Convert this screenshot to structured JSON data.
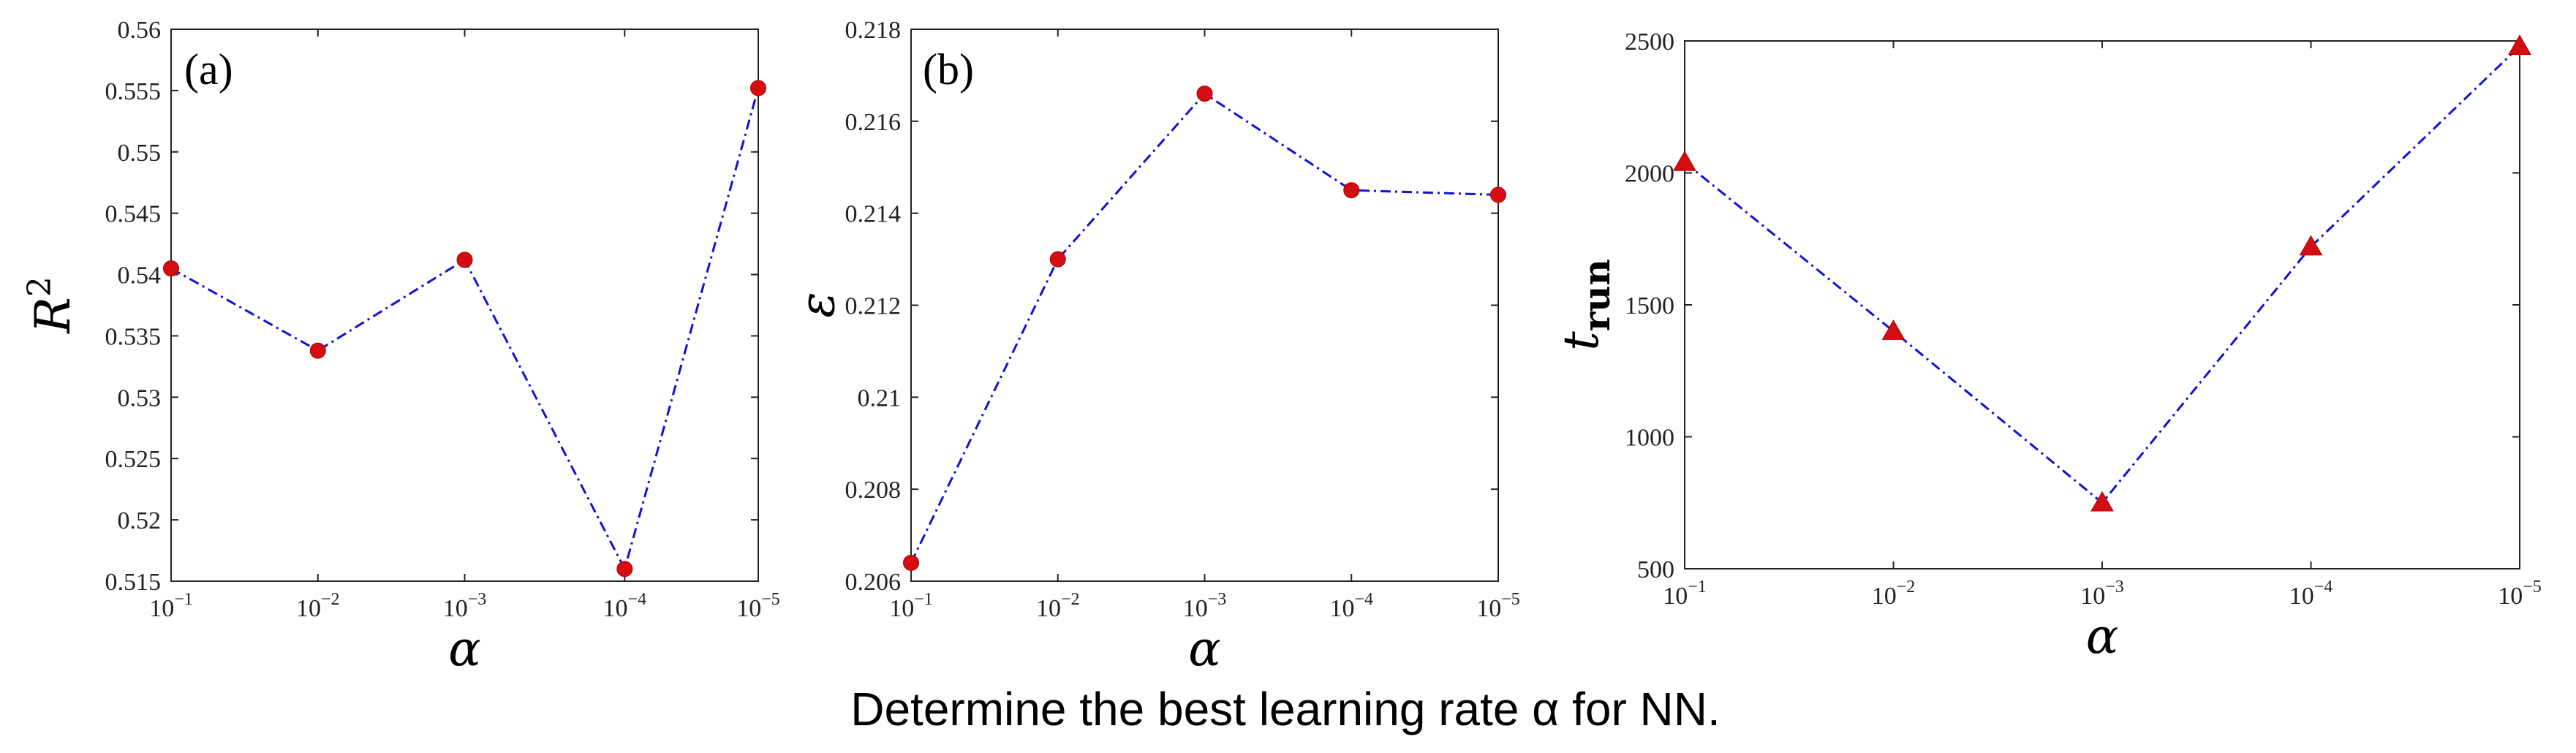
{
  "caption": "Determine the best learning rate α for NN.",
  "colors": {
    "line": "#1010d8",
    "marker": "#d40d12"
  },
  "chart_data": [
    {
      "type": "line",
      "panel_label": "(a)",
      "x_categories": [
        "10^-1",
        "10^-2",
        "10^-3",
        "10^-4",
        "10^-5"
      ],
      "x_exponents": [
        -1,
        -2,
        -3,
        -4,
        -5
      ],
      "x_positions": [
        0,
        1,
        2,
        3.09,
        4
      ],
      "xlabel": "α",
      "ylabel": "R",
      "ylabel_sup": "2",
      "ylim": [
        0.515,
        0.56
      ],
      "yticks": [
        0.515,
        0.52,
        0.525,
        0.53,
        0.535,
        0.54,
        0.545,
        0.55,
        0.555,
        0.56
      ],
      "ytick_labels": [
        "0.515",
        "0.52",
        "0.525",
        "0.53",
        "0.535",
        "0.54",
        "0.545",
        "0.55",
        "0.555",
        "0.56"
      ],
      "marker": "circle",
      "values": [
        0.5405,
        0.5338,
        0.5412,
        0.516,
        0.5552
      ]
    },
    {
      "type": "line",
      "panel_label": "(b)",
      "x_categories": [
        "10^-1",
        "10^-2",
        "10^-3",
        "10^-4",
        "10^-5"
      ],
      "x_exponents": [
        -1,
        -2,
        -3,
        -4,
        -5
      ],
      "x_positions": [
        0,
        1,
        2,
        3,
        4
      ],
      "xlabel": "α",
      "ylabel": "ε",
      "ylim": [
        0.206,
        0.218
      ],
      "yticks": [
        0.206,
        0.208,
        0.21,
        0.212,
        0.214,
        0.216,
        0.218
      ],
      "ytick_labels": [
        "0.206",
        "0.208",
        "0.21",
        "0.212",
        "0.214",
        "0.216",
        "0.218"
      ],
      "marker": "circle",
      "values": [
        0.2064,
        0.213,
        0.2166,
        0.2145,
        0.2144
      ]
    },
    {
      "type": "line",
      "panel_label": "",
      "x_categories": [
        "10^-1",
        "10^-2",
        "10^-3",
        "10^-4",
        "10^-5"
      ],
      "x_exponents": [
        -1,
        -2,
        -3,
        -4,
        -5
      ],
      "x_positions": [
        0,
        1,
        2,
        3,
        4
      ],
      "xlabel": "α",
      "ylabel": "t",
      "ylabel_sub": "run",
      "ylim": [
        500,
        2500
      ],
      "yticks": [
        500,
        1000,
        1500,
        2000,
        2500
      ],
      "ytick_labels": [
        "500",
        "1000",
        "1500",
        "2000",
        "2500"
      ],
      "marker": "triangle",
      "values": [
        2040,
        1400,
        750,
        1720,
        2480
      ]
    }
  ]
}
